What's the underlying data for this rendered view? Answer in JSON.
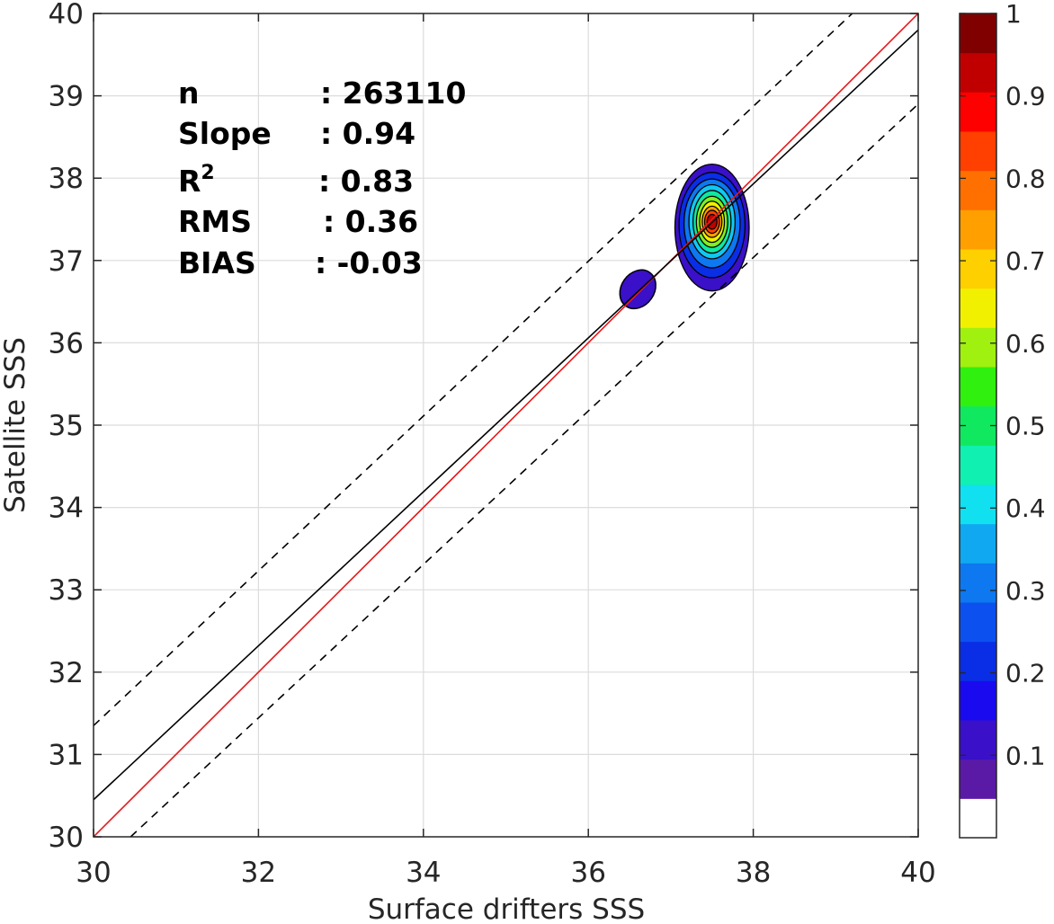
{
  "chart_data": {
    "type": "contour",
    "xlabel": "Surface drifters SSS",
    "ylabel": "Satellite SSS",
    "xlim": [
      30,
      40
    ],
    "ylim": [
      30,
      40
    ],
    "xticks": [
      30,
      32,
      34,
      36,
      38,
      40
    ],
    "yticks": [
      30,
      31,
      32,
      33,
      34,
      35,
      36,
      37,
      38,
      39,
      40
    ],
    "grid": true,
    "stats": [
      {
        "label": "n",
        "value": ": 263110"
      },
      {
        "label": "Slope",
        "value": ": 0.94"
      },
      {
        "label": "R",
        "sup": "2",
        "value": ": 0.83"
      },
      {
        "label": "RMS",
        "value": ": 0.36"
      },
      {
        "label": "BIAS",
        "value": ": -0.03"
      }
    ],
    "lines": [
      {
        "kind": "one-to-one",
        "color": "#e41a1c",
        "dash": false,
        "x": [
          30,
          40
        ],
        "y": [
          30,
          40
        ]
      },
      {
        "kind": "fit",
        "color": "#000000",
        "dash": false,
        "x": [
          30,
          40
        ],
        "y": [
          30.45,
          39.8
        ]
      },
      {
        "kind": "upper-bound",
        "color": "#000000",
        "dash": true,
        "x": [
          30,
          39.2
        ],
        "y": [
          31.35,
          40
        ]
      },
      {
        "kind": "lower-bound",
        "color": "#000000",
        "dash": true,
        "x": [
          30.45,
          40
        ],
        "y": [
          30,
          38.9
        ]
      }
    ],
    "density_peak": {
      "x": 37.5,
      "y": 37.45
    },
    "secondary_blob": {
      "x": 36.6,
      "y": 36.65,
      "rx": 0.2,
      "ry": 0.25
    },
    "contour_levels": [
      {
        "level": 0.05,
        "color": "#3a10c8",
        "rx": 0.45,
        "ry": 0.77,
        "cy_offset": -0.05
      },
      {
        "level": 0.15,
        "color": "#0a2ee6",
        "rx": 0.4,
        "ry": 0.64,
        "cy_offset": -0.02
      },
      {
        "level": 0.25,
        "color": "#0d78f0",
        "rx": 0.34,
        "ry": 0.54,
        "cy_offset": 0
      },
      {
        "level": 0.35,
        "color": "#10c8f0",
        "rx": 0.28,
        "ry": 0.45,
        "cy_offset": 0.02
      },
      {
        "level": 0.45,
        "color": "#10e8a0",
        "rx": 0.23,
        "ry": 0.38,
        "cy_offset": 0.02
      },
      {
        "level": 0.55,
        "color": "#80f020",
        "rx": 0.19,
        "ry": 0.31,
        "cy_offset": 0.02
      },
      {
        "level": 0.65,
        "color": "#f0f000",
        "rx": 0.15,
        "ry": 0.25,
        "cy_offset": 0.02
      },
      {
        "level": 0.75,
        "color": "#ffa000",
        "rx": 0.12,
        "ry": 0.19,
        "cy_offset": 0.02
      },
      {
        "level": 0.85,
        "color": "#ff4000",
        "rx": 0.09,
        "ry": 0.14,
        "cy_offset": 0.02
      },
      {
        "level": 0.95,
        "color": "#c00000",
        "rx": 0.06,
        "ry": 0.09,
        "cy_offset": 0.02
      }
    ],
    "colorbar": {
      "min": 0,
      "max": 1,
      "ticks": [
        0.1,
        0.2,
        0.3,
        0.4,
        0.5,
        0.6,
        0.7,
        0.8,
        0.9,
        1
      ],
      "tick_labels": [
        "0.1",
        "0.2",
        "0.3",
        "0.4",
        "0.5",
        "0.6",
        "0.7",
        "0.8",
        "0.9",
        "1"
      ],
      "colors": [
        "#ffffff",
        "#5a1aa6",
        "#3a10c8",
        "#1a0af0",
        "#0a2ee6",
        "#0d50f0",
        "#0d78f0",
        "#10a8f0",
        "#10e0f0",
        "#10f0b0",
        "#10e860",
        "#30f010",
        "#a0f010",
        "#f0f000",
        "#ffd000",
        "#ffa000",
        "#ff7000",
        "#ff4000",
        "#ff0000",
        "#c00000",
        "#800000"
      ]
    }
  }
}
